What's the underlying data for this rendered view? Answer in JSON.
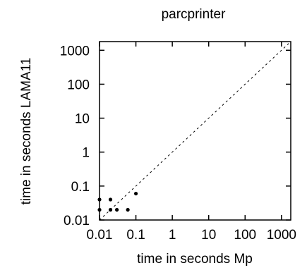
{
  "chart_data": {
    "type": "scatter",
    "title": "parcprinter",
    "xlabel": "time in seconds Mp",
    "ylabel": "time in seconds LAMA11",
    "xscale": "log",
    "yscale": "log",
    "xlim": [
      0.01,
      1800
    ],
    "ylim": [
      0.01,
      1800
    ],
    "grid": false,
    "legend": "none",
    "reference_line": "y = x (dashed)",
    "x_ticks": [
      {
        "value": 0.01,
        "label": "0.01"
      },
      {
        "value": 0.1,
        "label": "0.1"
      },
      {
        "value": 1,
        "label": "1"
      },
      {
        "value": 10,
        "label": "10"
      },
      {
        "value": 100,
        "label": "100"
      },
      {
        "value": 1000,
        "label": "1000"
      }
    ],
    "y_ticks": [
      {
        "value": 0.01,
        "label": "0.01"
      },
      {
        "value": 0.1,
        "label": "0.1"
      },
      {
        "value": 1,
        "label": "1"
      },
      {
        "value": 10,
        "label": "10"
      },
      {
        "value": 100,
        "label": "100"
      },
      {
        "value": 1000,
        "label": "1000"
      }
    ],
    "points": [
      {
        "x": 0.01,
        "y": 0.04
      },
      {
        "x": 0.01,
        "y": 0.02
      },
      {
        "x": 0.02,
        "y": 0.04
      },
      {
        "x": 0.02,
        "y": 0.02
      },
      {
        "x": 0.03,
        "y": 0.02
      },
      {
        "x": 0.06,
        "y": 0.02
      },
      {
        "x": 0.1,
        "y": 0.06
      }
    ],
    "colors": {
      "points": "#000000",
      "axes": "#000000",
      "reference_line": "#000000"
    }
  }
}
